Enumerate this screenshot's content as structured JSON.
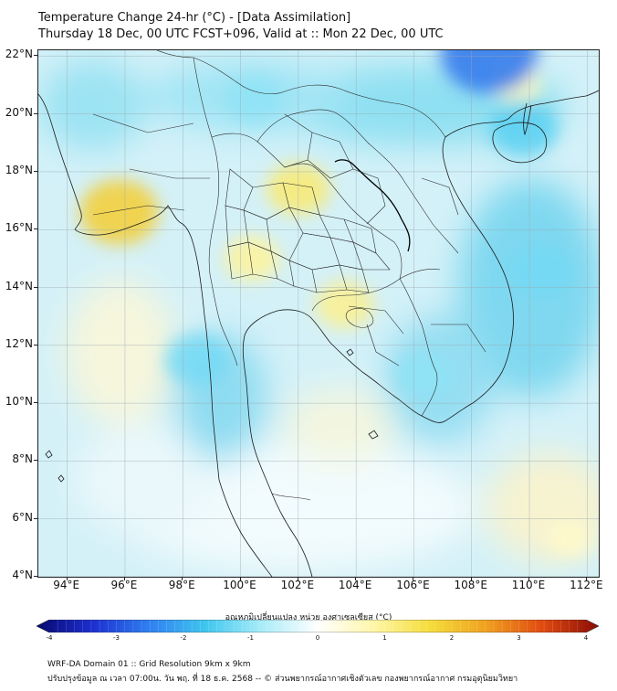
{
  "title": {
    "line1": "Temperature Change 24-hr (°C) - [Data Assimilation]",
    "line2": "Thursday 18 Dec, 00 UTC FCST+096, Valid at :: Mon 22 Dec, 00 UTC"
  },
  "map": {
    "lat_labels": [
      "22°N",
      "20°N",
      "18°N",
      "16°N",
      "14°N",
      "12°N",
      "10°N",
      "8°N",
      "6°N",
      "4°N"
    ],
    "lon_labels": [
      "94°E",
      "96°E",
      "98°E",
      "100°E",
      "102°E",
      "104°E",
      "106°E",
      "108°E",
      "110°E",
      "112°E"
    ],
    "lat_values": [
      22,
      20,
      18,
      16,
      14,
      12,
      10,
      8,
      6,
      4
    ],
    "lon_values": [
      94,
      96,
      98,
      100,
      102,
      104,
      106,
      108,
      110,
      112
    ],
    "extent": {
      "lon_min": 93,
      "lon_max": 112.4,
      "lat_min": 4,
      "lat_max": 22.2
    },
    "hotspots": [
      {
        "name": "warm-anomaly-myanmar-coast",
        "lon": 95.8,
        "lat": 16.6,
        "value": 1.8
      },
      {
        "name": "warm-anomaly-northern-thailand",
        "lon": 102.0,
        "lat": 17.4,
        "value": 1.2
      },
      {
        "name": "warm-anomaly-central-thailand",
        "lon": 100.4,
        "lat": 15.0,
        "value": 0.9
      },
      {
        "name": "warm-anomaly-cambodia",
        "lon": 103.6,
        "lat": 13.4,
        "value": 1.0
      },
      {
        "name": "warm-anomaly-hainan-east",
        "lon": 109.6,
        "lat": 21.0,
        "value": 0.6
      },
      {
        "name": "cool-anomaly-gulf-tonkin-north",
        "lon": 108.6,
        "lat": 22.1,
        "value": -2.5
      },
      {
        "name": "cool-anomaly-hainan",
        "lon": 109.8,
        "lat": 19.5,
        "value": -1.4
      },
      {
        "name": "cool-anomaly-south-china-sea",
        "lon": 110.4,
        "lat": 14.6,
        "value": -1.2
      },
      {
        "name": "cool-anomaly-andaman",
        "lon": 98.5,
        "lat": 11.5,
        "value": -1.2
      },
      {
        "name": "cool-anomaly-north-myanmar",
        "lon": 100.5,
        "lat": 20.5,
        "value": -1.0
      },
      {
        "name": "cool-anomaly-south-vietnam",
        "lon": 106.4,
        "lat": 11.0,
        "value": -1.0
      },
      {
        "name": "warm-anomaly-south-sea",
        "lon": 111.4,
        "lat": 5.3,
        "value": 0.5
      }
    ]
  },
  "colorbar": {
    "label": "อุณหภูมิเปลี่ยนแปลง หน่วย องศาเซลเซียส (°C)",
    "min": -4,
    "max": 4,
    "ticks": [
      "-4",
      "-3",
      "-2",
      "-1",
      "0",
      "1",
      "2",
      "3",
      "4"
    ],
    "colors": [
      "#08086e",
      "#1c2fd0",
      "#2f7ff0",
      "#3fc6ef",
      "#a8ecf8",
      "#ffffff",
      "#fff6a8",
      "#f5dd3a",
      "#f0a020",
      "#e04a10",
      "#8a0c06"
    ]
  },
  "footer": {
    "line1": "WRF-DA Domain 01 :: Grid Resolution 9km x 9km",
    "line2": "ปรับปรุงข้อมูล ณ เวลา 07:00น. วัน พฤ. ที่ 18 ธ.ค. 2568 -- © ส่วนพยากรณ์อากาศเชิงตัวเลข กองพยากรณ์อากาศ กรมอุตุนิยมวิทยา"
  }
}
